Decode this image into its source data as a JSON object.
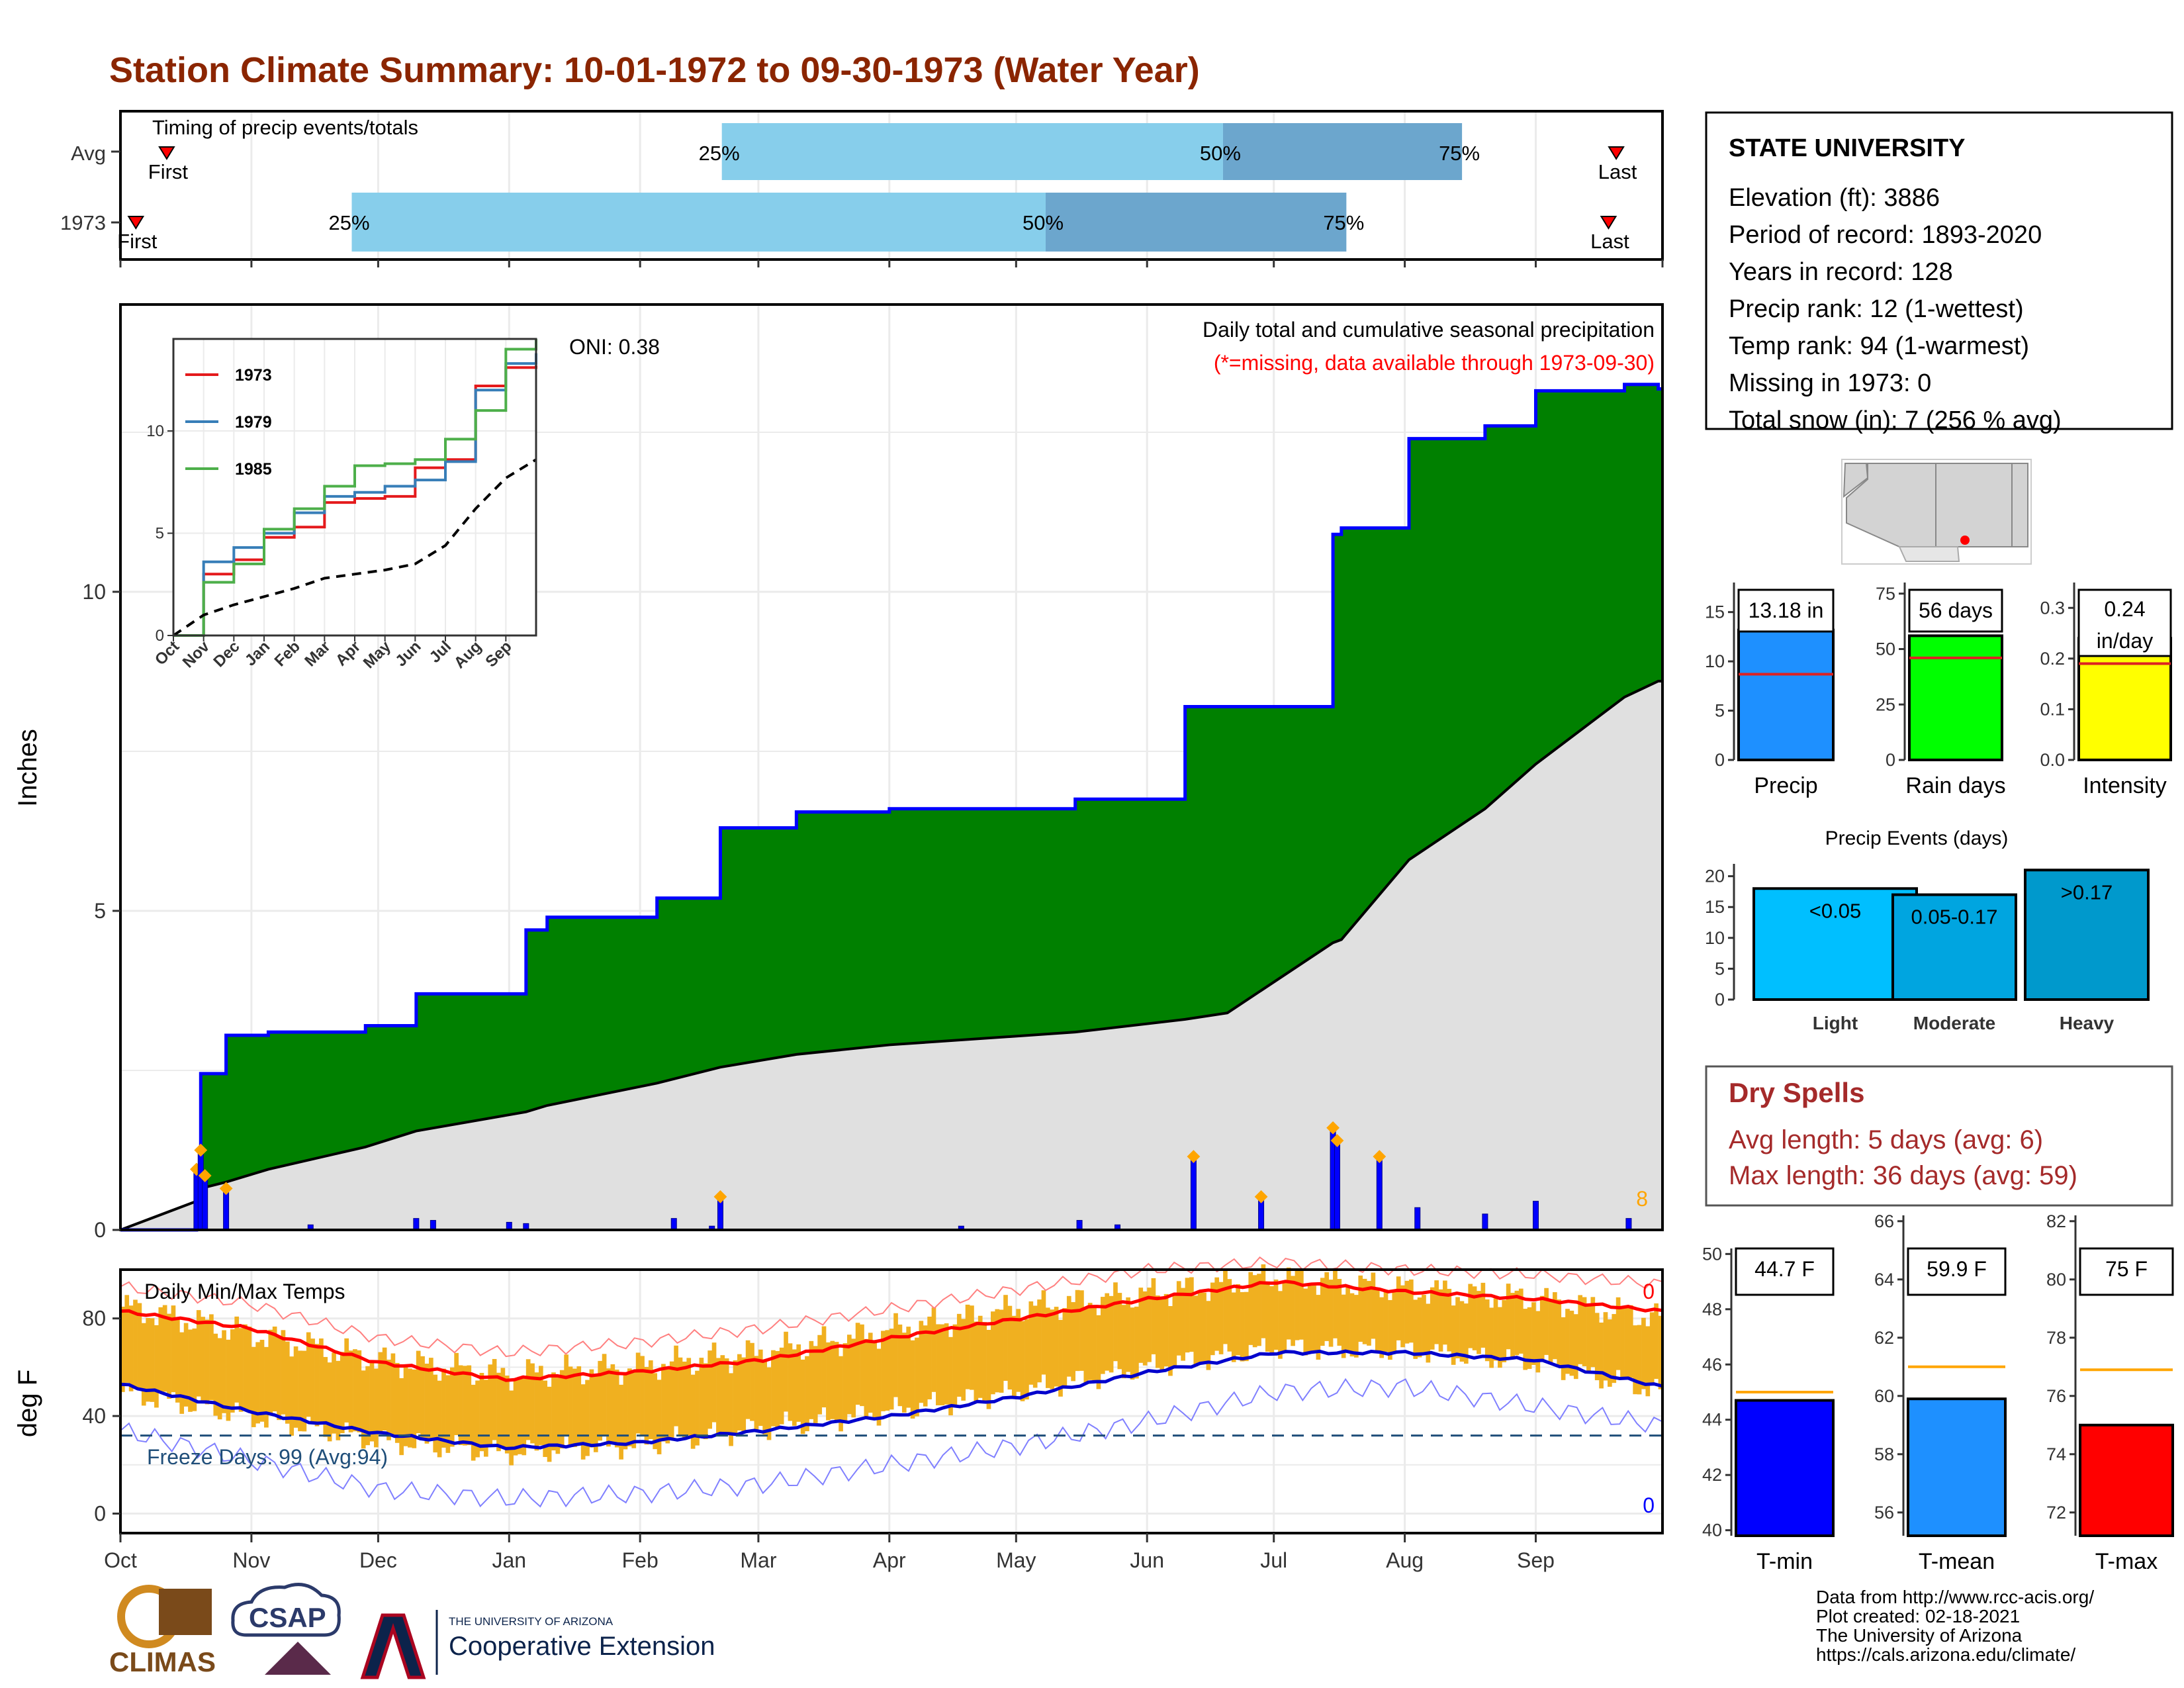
{
  "page_title": "Station Climate Summary: 10-01-1972 to 09-30-1973 (Water Year)",
  "colors": {
    "title": "#8b2500",
    "cum_area": "#008000",
    "cum_line": "#0000ff",
    "avg_area": "#e0e0e0",
    "q_light": "#87ceeb",
    "q_dark": "#6ca6cd",
    "tmin": "#0000ff",
    "tmean": "#1e90ff",
    "tmax": "#ff0000",
    "rain_days": "#00ff00",
    "intensity": "#ffff00",
    "ev_light": "#00bfff",
    "ev_moderate": "#00a5e0",
    "ev_heavy": "#0099cc",
    "temp_bar": "#f0b020",
    "dry_spells": "#a52a2a"
  },
  "timing": {
    "title": "Timing of precip events/totals",
    "rows": [
      {
        "label": "Avg",
        "first_label": "First",
        "last_label": "Last",
        "first": 0.03,
        "last": 0.97,
        "q25": 0.39,
        "q50": 0.715,
        "q75": 0.87,
        "q25_label": "25%",
        "q50_label": "50%",
        "q75_label": "75%"
      },
      {
        "label": "1973",
        "first_label": "First",
        "last_label": "Last",
        "first": 0.01,
        "last": 0.965,
        "q25": 0.15,
        "q50": 0.6,
        "q75": 0.795,
        "q25_label": "25%",
        "q50_label": "50%",
        "q75_label": "75%"
      }
    ]
  },
  "precip_panel": {
    "ylabel": "Inches",
    "annotation_title": "Daily total and cumulative seasonal precipitation",
    "annotation_missing": "(*=missing, data available through 1973-09-30)",
    "oni_label": "ONI: 0.38",
    "count_label": "8",
    "y_ticks": [
      "0",
      "5",
      "10"
    ]
  },
  "inset": {
    "x_ticks": [
      "Oct",
      "Nov",
      "Dec",
      "Jan",
      "Feb",
      "Mar",
      "Apr",
      "May",
      "Jun",
      "Jul",
      "Aug",
      "Sep"
    ],
    "y_ticks": [
      "0",
      "5",
      "10"
    ],
    "legend": [
      "1973",
      "1979",
      "1985"
    ]
  },
  "chart_data": [
    {
      "type": "area",
      "title": "Daily total and cumulative seasonal precipitation",
      "ylabel": "Inches",
      "ylim": [
        0,
        14.5
      ],
      "x": [
        "1972-10-01",
        "1972-10-19",
        "1972-10-20",
        "1972-10-26",
        "1972-11-05",
        "1972-11-28",
        "1972-12-10",
        "1973-01-05",
        "1973-01-10",
        "1973-02-05",
        "1973-02-20",
        "1973-03-10",
        "1973-04-01",
        "1973-05-15",
        "1973-06-10",
        "1973-06-20",
        "1973-07-15",
        "1973-07-17",
        "1973-08-02",
        "1973-08-20",
        "1973-09-01",
        "1973-09-22",
        "1973-09-30"
      ],
      "series": [
        {
          "name": "cumulative",
          "values": [
            0,
            0.7,
            2.45,
            3.05,
            3.1,
            3.2,
            3.7,
            4.7,
            4.9,
            5.2,
            6.3,
            6.55,
            6.6,
            6.75,
            8.2,
            8.2,
            10.9,
            11.0,
            12.4,
            12.6,
            13.15,
            13.25,
            13.18
          ]
        },
        {
          "name": "average",
          "values": [
            0,
            0.45,
            0.65,
            0.75,
            0.95,
            1.3,
            1.55,
            1.85,
            1.95,
            2.3,
            2.55,
            2.75,
            2.9,
            3.1,
            3.3,
            3.4,
            4.5,
            4.55,
            5.8,
            6.6,
            7.3,
            8.35,
            8.6
          ]
        }
      ]
    },
    {
      "type": "bar",
      "title": "Daily precipitation",
      "ylabel": "Inches",
      "x": [
        "1972-10-19",
        "1972-10-20",
        "1972-10-21",
        "1972-10-26",
        "1972-11-15",
        "1972-12-10",
        "1972-12-14",
        "1973-01-01",
        "1973-01-05",
        "1973-02-09",
        "1973-02-18",
        "1973-02-20",
        "1973-04-18",
        "1973-05-16",
        "1973-05-25",
        "1973-06-12",
        "1973-06-28",
        "1973-07-15",
        "1973-07-16",
        "1973-07-26",
        "1973-08-04",
        "1973-08-20",
        "1973-09-01",
        "1973-09-23"
      ],
      "values": [
        0.95,
        1.25,
        0.85,
        0.65,
        0.08,
        0.18,
        0.15,
        0.12,
        0.1,
        0.18,
        0.06,
        0.52,
        0.06,
        0.15,
        0.08,
        1.15,
        0.52,
        1.6,
        1.4,
        1.15,
        0.35,
        0.25,
        0.45,
        0.18
      ]
    },
    {
      "type": "line",
      "title": "Daily Min/Max Temps",
      "ylabel": "deg F",
      "ylim": [
        -8,
        100
      ],
      "x": [
        "Oct",
        "Nov",
        "Dec",
        "Jan",
        "Feb",
        "Mar",
        "Apr",
        "May",
        "Jun",
        "Jul",
        "Aug",
        "Sep",
        "end"
      ],
      "series": [
        {
          "name": "avg_max",
          "values": [
            83,
            76,
            62,
            55,
            58,
            63,
            72,
            80,
            88,
            95,
            91,
            88,
            83
          ]
        },
        {
          "name": "avg_min",
          "values": [
            53,
            42,
            33,
            27,
            29,
            34,
            40,
            48,
            58,
            66,
            66,
            63,
            52
          ]
        },
        {
          "name": "record_max",
          "values": [
            93,
            86,
            72,
            66,
            70,
            76,
            84,
            92,
            100,
            103,
            100,
            98,
            94
          ]
        },
        {
          "name": "record_min",
          "values": [
            34,
            22,
            10,
            6,
            8,
            12,
            20,
            28,
            38,
            50,
            52,
            44,
            36
          ]
        },
        {
          "name": "obs_max",
          "values": [
            85,
            74,
            63,
            57,
            60,
            66,
            75,
            84,
            90,
            97,
            92,
            88,
            80
          ]
        },
        {
          "name": "obs_min",
          "values": [
            50,
            40,
            30,
            25,
            28,
            35,
            42,
            50,
            60,
            68,
            67,
            62,
            50
          ]
        }
      ],
      "freeze_line": 32,
      "freeze_label": "Freeze Days: 99 (Avg:94)",
      "record_max_count": "0",
      "record_min_count": "0",
      "x_ticks": [
        "Oct",
        "Nov",
        "Dec",
        "Jan",
        "Feb",
        "Mar",
        "Apr",
        "May",
        "Jun",
        "Jul",
        "Aug",
        "Sep"
      ],
      "y_ticks": [
        "0",
        "40",
        "80"
      ]
    },
    {
      "type": "line",
      "title": "Inset cumulative precipitation",
      "ylim": [
        0,
        14.5
      ],
      "x": [
        "Oct",
        "Nov",
        "Dec",
        "Jan",
        "Feb",
        "Mar",
        "Apr",
        "May",
        "Jun",
        "Jul",
        "Aug",
        "Sep",
        "end"
      ],
      "series": [
        {
          "name": "1973",
          "values": [
            0,
            3.0,
            3.7,
            4.8,
            5.3,
            6.5,
            6.7,
            6.8,
            8.2,
            8.6,
            12.2,
            13.1,
            13.2
          ]
        },
        {
          "name": "1979",
          "values": [
            0,
            3.6,
            4.3,
            5.0,
            6.0,
            6.8,
            7.0,
            7.3,
            7.6,
            8.5,
            12.0,
            13.3,
            13.8
          ]
        },
        {
          "name": "1985",
          "values": [
            0,
            2.6,
            3.5,
            5.2,
            6.2,
            7.3,
            8.3,
            8.4,
            8.6,
            9.6,
            11.0,
            14.0,
            14.5
          ]
        },
        {
          "name": "average",
          "values": [
            0,
            1.0,
            1.5,
            1.9,
            2.3,
            2.8,
            3.0,
            3.2,
            3.5,
            4.4,
            6.2,
            7.7,
            8.6
          ]
        }
      ]
    },
    {
      "type": "bar",
      "title": "Precip",
      "categories": [
        "Precip"
      ],
      "values": [
        13.18
      ],
      "avg": 8.7,
      "ylim": [
        0,
        18
      ],
      "y_ticks": [
        "0",
        "5",
        "10",
        "15"
      ],
      "value_label": "13.18 in"
    },
    {
      "type": "bar",
      "title": "Rain days",
      "categories": [
        "Rain days"
      ],
      "values": [
        56
      ],
      "avg": 46,
      "ylim": [
        0,
        80
      ],
      "y_ticks": [
        "0",
        "25",
        "50",
        "75"
      ],
      "value_label": "56 days"
    },
    {
      "type": "bar",
      "title": "Intensity",
      "categories": [
        "Intensity"
      ],
      "values": [
        0.24
      ],
      "avg": 0.19,
      "ylim": [
        0,
        0.35
      ],
      "y_ticks": [
        "0.0",
        "0.1",
        "0.2",
        "0.3"
      ],
      "value_label": "0.24 in/day"
    },
    {
      "type": "bar",
      "title": "Precip Events (days)",
      "categories": [
        "Light",
        "Moderate",
        "Heavy"
      ],
      "values": [
        18,
        17,
        21
      ],
      "ylim": [
        0,
        22
      ],
      "y_ticks": [
        "0",
        "5",
        "10",
        "15",
        "20"
      ],
      "value_labels": [
        "<0.05",
        "0.05-0.17",
        ">0.17"
      ]
    },
    {
      "type": "bar",
      "title": "T-min",
      "categories": [
        "T-min"
      ],
      "values": [
        44.7
      ],
      "avg": 45.0,
      "ylim": [
        39.8,
        50.2
      ],
      "y_ticks": [
        "40",
        "42",
        "44",
        "46",
        "48",
        "50"
      ],
      "value_label": "44.7 F"
    },
    {
      "type": "bar",
      "title": "T-mean",
      "categories": [
        "T-mean"
      ],
      "values": [
        59.9
      ],
      "avg": 61.0,
      "ylim": [
        55.2,
        66.2
      ],
      "y_ticks": [
        "56",
        "58",
        "60",
        "62",
        "64",
        "66"
      ],
      "value_label": "59.9 F"
    },
    {
      "type": "bar",
      "title": "T-max",
      "categories": [
        "T-max"
      ],
      "values": [
        75
      ],
      "avg": 76.9,
      "ylim": [
        71.2,
        82.2
      ],
      "y_ticks": [
        "72",
        "74",
        "76",
        "78",
        "80",
        "82"
      ],
      "value_label": "75 F"
    }
  ],
  "station": {
    "name": "STATE UNIVERSITY",
    "lines": [
      "Elevation (ft): 3886",
      "Period of record: 1893-2020",
      "Years in record: 128",
      "Precip rank: 12 (1-wettest)",
      "Temp rank: 94 (1-warmest)",
      "Missing in 1973: 0",
      "Total snow (in): 7 (256 % avg)"
    ]
  },
  "dry_spells": {
    "title": "Dry Spells",
    "avg_line": "Avg length: 5 days (avg: 6)",
    "max_line": "Max length: 36 days (avg: 59)"
  },
  "footer": {
    "lines": [
      "Data from http://www.rcc-acis.org/",
      "Plot created: 02-18-2021",
      "The University of Arizona",
      "https://cals.arizona.edu/climate/"
    ]
  },
  "logos": {
    "climas": "CLIMAS",
    "csap": "CSAP",
    "ua_small": "THE UNIVERSITY OF ARIZONA",
    "ua_ext": "Cooperative Extension"
  }
}
